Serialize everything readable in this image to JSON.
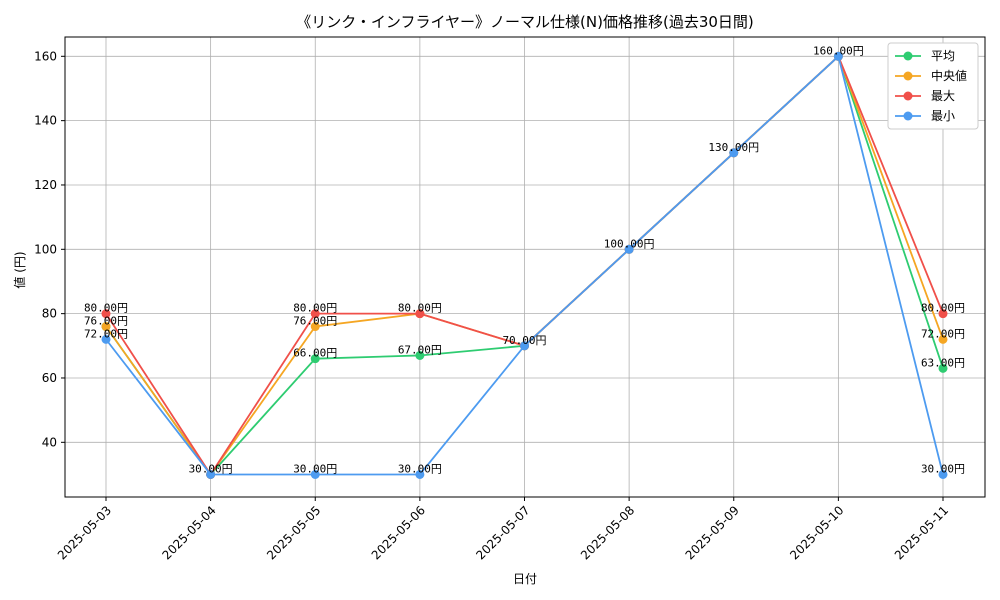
{
  "chart_data": {
    "type": "line",
    "title": "《リンク・インフライヤー》ノーマル仕様(N)価格推移(過去30日間)",
    "xlabel": "日付",
    "ylabel": "値 (円)",
    "ylim": [
      23,
      166
    ],
    "yticks": [
      40,
      60,
      80,
      100,
      120,
      140,
      160
    ],
    "grid": true,
    "legend_position": "top-right",
    "categories": [
      "2025-05-03",
      "2025-05-04",
      "2025-05-05",
      "2025-05-06",
      "2025-05-07",
      "2025-05-08",
      "2025-05-09",
      "2025-05-10",
      "2025-05-11"
    ],
    "series": [
      {
        "name": "平均",
        "color": "#2ecc71",
        "values": [
          76,
          30,
          66,
          67,
          70,
          100,
          130,
          160,
          63
        ]
      },
      {
        "name": "中央値",
        "color": "#f5a623",
        "values": [
          76,
          30,
          76,
          80,
          70,
          100,
          130,
          160,
          72
        ]
      },
      {
        "name": "最大",
        "color": "#f0504a",
        "values": [
          80,
          30,
          80,
          80,
          70,
          100,
          130,
          160,
          80
        ]
      },
      {
        "name": "最小",
        "color": "#4d9bf0",
        "values": [
          72,
          30,
          30,
          30,
          70,
          100,
          130,
          160,
          30
        ]
      }
    ],
    "data_label_suffix": "円"
  }
}
